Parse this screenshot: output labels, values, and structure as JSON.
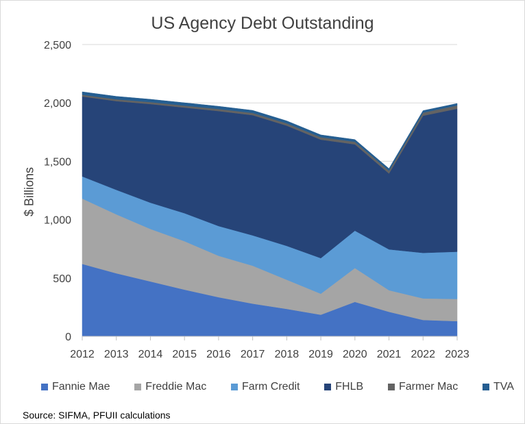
{
  "chart_data": {
    "type": "area",
    "stacked": true,
    "title": "US Agency Debt Outstanding",
    "ylabel": "$ Billions",
    "xlabel": "",
    "x": [
      2012,
      2013,
      2014,
      2015,
      2016,
      2017,
      2018,
      2019,
      2020,
      2021,
      2022,
      2023
    ],
    "ylim": [
      0,
      2500
    ],
    "yticks": [
      0,
      500,
      1000,
      1500,
      2000,
      2500
    ],
    "ytick_labels": [
      "0",
      "500",
      "1,000",
      "1,500",
      "2,000",
      "2,500"
    ],
    "grid": "horizontal",
    "legend": "bottom",
    "series": [
      {
        "name": "Fannie Mae",
        "color": "#4472c4",
        "values": [
          620,
          540,
          470,
          400,
          335,
          280,
          235,
          185,
          295,
          210,
          140,
          130
        ]
      },
      {
        "name": "Freddie Mac",
        "color": "#a5a5a5",
        "values": [
          560,
          505,
          450,
          415,
          355,
          325,
          250,
          180,
          290,
          185,
          185,
          190
        ]
      },
      {
        "name": "Farm Credit",
        "color": "#5b9bd5",
        "values": [
          190,
          210,
          225,
          240,
          255,
          260,
          290,
          305,
          320,
          350,
          390,
          405
        ]
      },
      {
        "name": "FHLB",
        "color": "#264478",
        "values": [
          685,
          760,
          845,
          905,
          985,
          1030,
          1030,
          1015,
          740,
          650,
          1175,
          1225
        ]
      },
      {
        "name": "Farmer Mac",
        "color": "#636363",
        "values": [
          15,
          16,
          17,
          17,
          18,
          19,
          20,
          21,
          22,
          24,
          26,
          28
        ]
      },
      {
        "name": "TVA",
        "color": "#255e91",
        "values": [
          25,
          25,
          24,
          24,
          23,
          22,
          21,
          20,
          19,
          18,
          18,
          17
        ]
      }
    ]
  },
  "source_text": "Source:  SIFMA, PFUII calculations"
}
